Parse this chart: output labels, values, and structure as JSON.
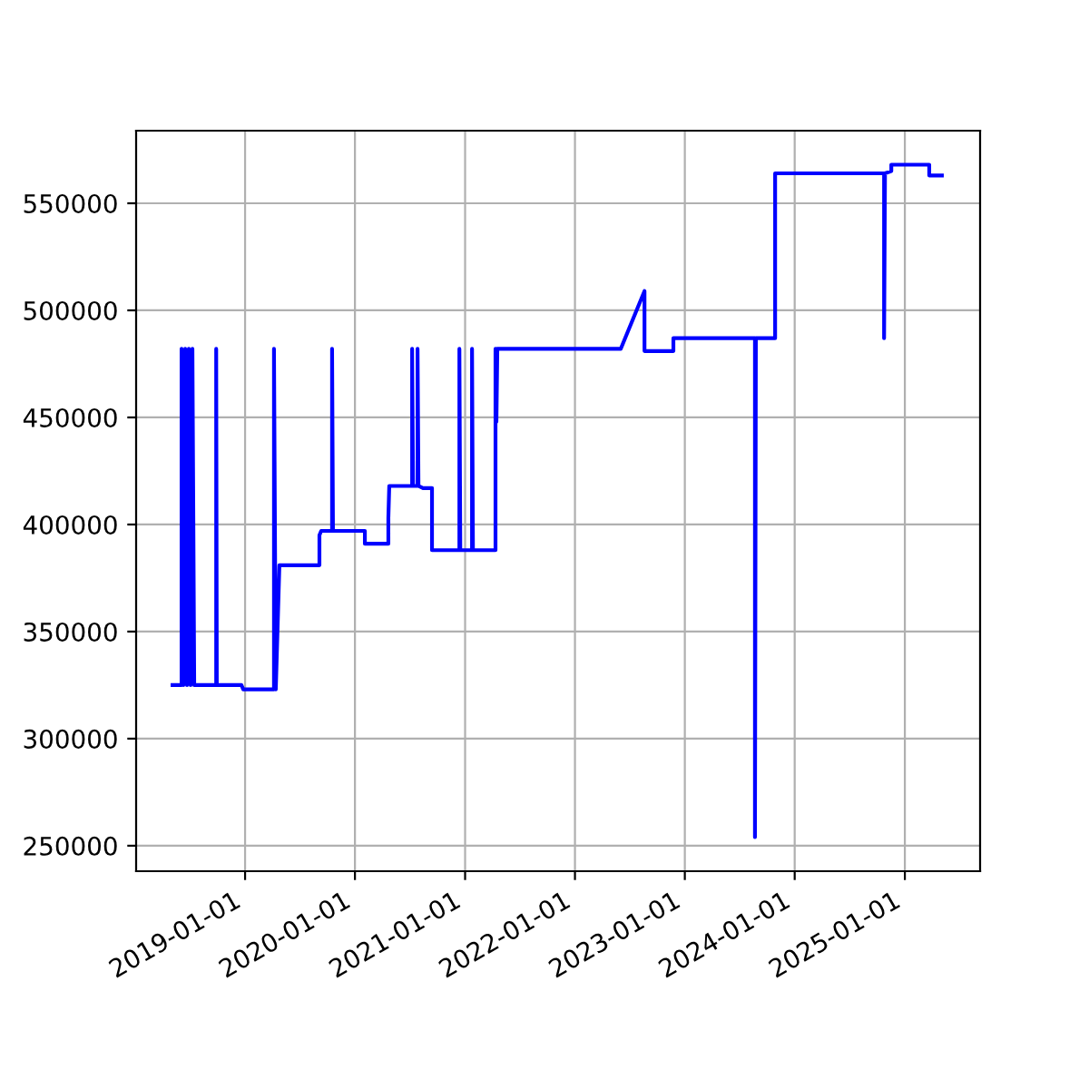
{
  "chart_data": {
    "type": "line",
    "grid": true,
    "xlim": [
      "2018-01-04",
      "2025-09-08"
    ],
    "xticks": [
      "2019-01-01",
      "2020-01-01",
      "2021-01-01",
      "2022-01-01",
      "2023-01-01",
      "2024-01-01",
      "2025-01-01"
    ],
    "ylim": [
      238100,
      583900
    ],
    "yticks": [
      250000,
      300000,
      350000,
      400000,
      450000,
      500000,
      550000
    ],
    "series": [
      {
        "color": "#0000ff",
        "x": [
          "2018-05-05",
          "2018-06-04",
          "2018-06-04",
          "2018-06-10",
          "2018-06-16",
          "2018-06-22",
          "2018-06-28",
          "2018-07-04",
          "2018-07-10",
          "2018-07-16",
          "2018-09-27",
          "2018-09-27",
          "2018-09-29",
          "2018-12-20",
          "2018-12-26",
          "2019-04-07",
          "2019-04-07",
          "2019-04-13",
          "2019-04-25",
          "2019-09-05",
          "2019-09-05",
          "2019-09-11",
          "2019-10-17",
          "2019-10-17",
          "2019-10-20",
          "2020-02-03",
          "2020-02-03",
          "2020-04-21",
          "2020-04-21",
          "2020-04-24",
          "2020-07-09",
          "2020-07-09",
          "2020-07-12",
          "2020-07-27",
          "2020-07-27",
          "2020-07-30",
          "2020-08-14",
          "2020-09-13",
          "2020-09-13",
          "2020-12-13",
          "2020-12-13",
          "2020-12-16",
          "2021-01-24",
          "2021-01-24",
          "2021-01-27",
          "2021-04-12",
          "2021-04-12",
          "2021-04-15",
          "2021-04-18",
          "2022-06-02",
          "2022-08-20",
          "2022-08-20",
          "2022-11-24",
          "2022-11-24",
          "2023-08-22",
          "2023-08-22",
          "2023-08-25",
          "2023-10-28",
          "2023-10-28",
          "2024-10-24",
          "2024-10-24",
          "2024-10-27",
          "2024-11-17",
          "2024-11-17",
          "2025-03-23",
          "2025-03-23",
          "2025-05-04"
        ],
        "values": [
          325000,
          325000,
          482000,
          325000,
          482000,
          325000,
          482000,
          325000,
          482000,
          325000,
          325000,
          482000,
          325000,
          325000,
          323000,
          323000,
          482000,
          323000,
          381000,
          381000,
          395000,
          397000,
          397000,
          482000,
          397000,
          397000,
          391000,
          391000,
          403000,
          418000,
          418000,
          482000,
          418000,
          418000,
          482000,
          418000,
          417000,
          417000,
          388000,
          388000,
          482000,
          388000,
          388000,
          482000,
          388000,
          388000,
          482000,
          448000,
          482000,
          482000,
          509000,
          481000,
          481000,
          487000,
          487000,
          254000,
          487000,
          487000,
          564000,
          564000,
          487000,
          564000,
          565000,
          568000,
          568000,
          563000,
          563000
        ]
      }
    ]
  }
}
